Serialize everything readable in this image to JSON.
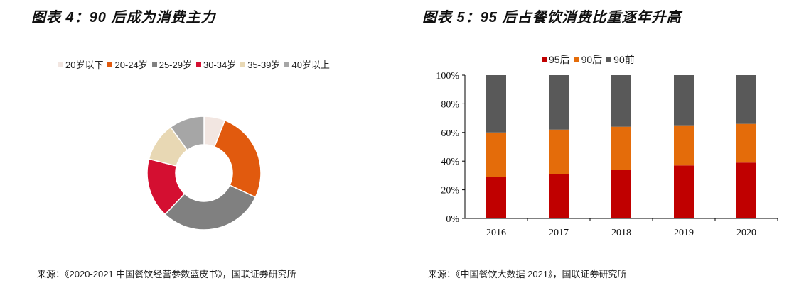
{
  "left": {
    "title": "图表 4：90 后成为消费主力",
    "source": "来源：《2020-2021 中国餐饮经营参数蓝皮书》，国联证券研究所",
    "chart_data": {
      "type": "pie",
      "categories": [
        "20岁以下",
        "20-24岁",
        "25-29岁",
        "30-34岁",
        "35-39岁",
        "40岁以上"
      ],
      "values": [
        6,
        26,
        30,
        17,
        11,
        10
      ],
      "colors": [
        "#f2e6e1",
        "#e15a0e",
        "#808080",
        "#d40f31",
        "#e8d8b4",
        "#a6a6a6"
      ]
    }
  },
  "right": {
    "title": "图表 5：95 后占餐饮消费比重逐年升高",
    "source": "来源：《中国餐饮大数据 2021》，国联证券研究所",
    "chart_data": {
      "type": "bar",
      "stacked": true,
      "categories": [
        "2016",
        "2017",
        "2018",
        "2019",
        "2020"
      ],
      "series": [
        {
          "name": "95后",
          "values": [
            29,
            31,
            34,
            37,
            39
          ],
          "color": "#c00000"
        },
        {
          "name": "90后",
          "values": [
            31,
            31,
            30,
            28,
            27
          ],
          "color": "#e46c0a"
        },
        {
          "name": "90前",
          "values": [
            40,
            38,
            36,
            35,
            34
          ],
          "color": "#595959"
        }
      ],
      "yticks": [
        "0%",
        "20%",
        "40%",
        "60%",
        "80%",
        "100%"
      ],
      "ylim": [
        0,
        100
      ]
    }
  }
}
